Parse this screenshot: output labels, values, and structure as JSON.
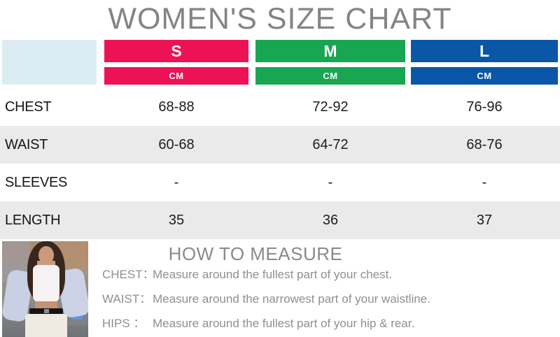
{
  "title": "WOMEN'S SIZE CHART",
  "colors": {
    "size_s": "#ED1256",
    "size_m": "#19A652",
    "size_l": "#0A57A8",
    "corner_bg": "#DBECF2",
    "row_stripe": "#EAEAEA"
  },
  "table": {
    "sizes": [
      {
        "label": "S",
        "unit": "CM"
      },
      {
        "label": "M",
        "unit": "CM"
      },
      {
        "label": "L",
        "unit": "CM"
      }
    ],
    "rows": [
      {
        "label": "CHEST",
        "values": [
          "68-88",
          "72-92",
          "76-96"
        ]
      },
      {
        "label": "WAIST",
        "values": [
          "60-68",
          "64-72",
          "68-76"
        ]
      },
      {
        "label": "SLEEVES",
        "values": [
          "-",
          "-",
          "-"
        ]
      },
      {
        "label": "LENGTH",
        "values": [
          "35",
          "36",
          "37"
        ]
      }
    ]
  },
  "how_to_measure": {
    "heading": "HOW TO MEASURE",
    "items": [
      {
        "label": "CHEST：",
        "text": "Measure around the fullest part of your chest."
      },
      {
        "label": "WAIST：",
        "text": "Measure around the narrowest part of your waistline."
      },
      {
        "label": "HIPS ：",
        "text": "Measure around the fullest part of your hip & rear."
      }
    ]
  }
}
